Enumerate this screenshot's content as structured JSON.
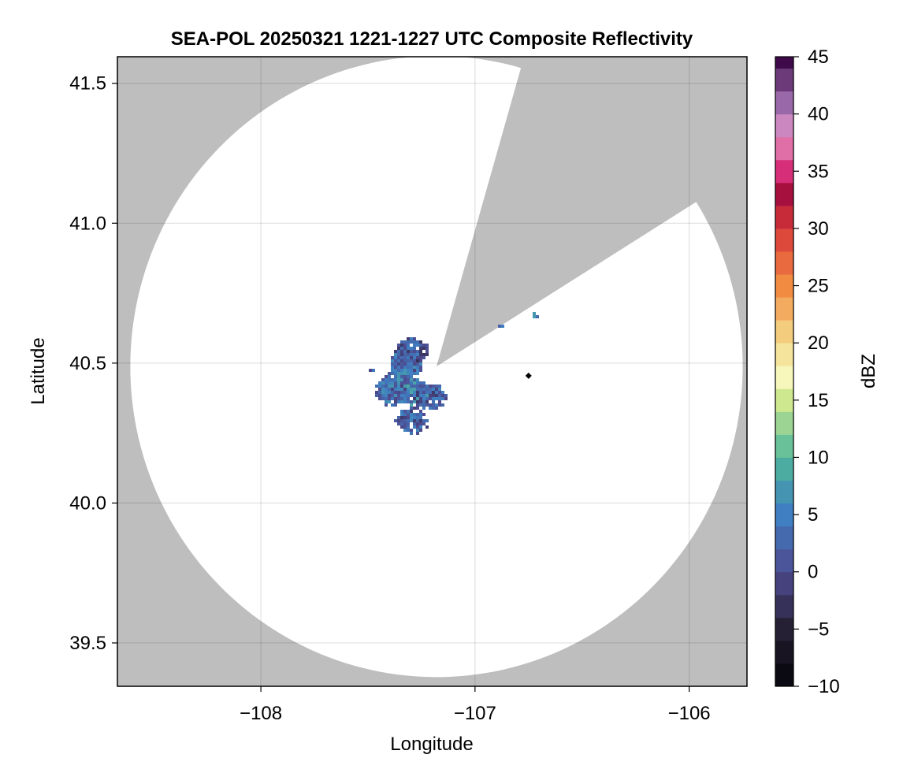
{
  "chart_data": {
    "type": "heatmap",
    "title": "SEA-POL 20250321 1221-1227 UTC Composite Reflectivity",
    "xlabel": "Longitude",
    "ylabel": "Latitude",
    "xlim": [
      -108.67,
      -105.73
    ],
    "ylim": [
      39.345,
      41.595
    ],
    "xticks": [
      -108,
      -107,
      -106
    ],
    "xtick_labels": [
      "−108",
      "−107",
      "−106"
    ],
    "yticks": [
      39.5,
      40.0,
      40.5,
      41.0,
      41.5
    ],
    "ytick_labels": [
      "39.5",
      "40.0",
      "40.5",
      "41.0",
      "41.5"
    ],
    "grid": true,
    "background_color": "#bebebe",
    "coverage_fill_color": "#ffffff",
    "radar": {
      "center_lon": -107.18,
      "center_lat": 40.488,
      "range_lon_deg": 1.43,
      "range_lat_deg": 1.11,
      "blocked_sector_azimuth_deg": [
        16,
        58
      ]
    },
    "radar_site_marker": {
      "lon": -106.75,
      "lat": 40.455,
      "color": "#000000"
    },
    "echoes": {
      "description_dbz_range": [
        -2,
        8
      ],
      "blobs": [
        {
          "lon": -107.33,
          "lat": 40.5,
          "dbz": 3
        },
        {
          "lon": -107.36,
          "lat": 40.44,
          "dbz": 4
        },
        {
          "lon": -107.3,
          "lat": 40.4,
          "dbz": 5
        },
        {
          "lon": -107.22,
          "lat": 40.385,
          "dbz": 2
        },
        {
          "lon": -107.4,
          "lat": 40.4,
          "dbz": 3
        },
        {
          "lon": -107.3,
          "lat": 40.55,
          "dbz": 1
        },
        {
          "lon": -107.3,
          "lat": 40.3,
          "dbz": 2
        },
        {
          "lon": -107.49,
          "lat": 40.48,
          "dbz": 1
        },
        {
          "lon": -106.88,
          "lat": 40.63,
          "dbz": 6
        },
        {
          "lon": -106.72,
          "lat": 40.68,
          "dbz": 6
        }
      ]
    },
    "colorbar": {
      "label": "dBZ",
      "min": -10,
      "max": 45,
      "step": 2,
      "ticks": [
        -10,
        -5,
        0,
        5,
        10,
        15,
        20,
        25,
        30,
        35,
        40,
        45
      ],
      "tick_labels": [
        "−10",
        "−5",
        "0",
        "5",
        "10",
        "15",
        "20",
        "25",
        "30",
        "35",
        "40",
        "45"
      ],
      "colormap": [
        [
          -10,
          "#050308"
        ],
        [
          -5,
          "#252033"
        ],
        [
          0,
          "#4e4a8f"
        ],
        [
          5,
          "#3f7fc2"
        ],
        [
          10,
          "#4fb79a"
        ],
        [
          15,
          "#cde88f"
        ],
        [
          17,
          "#f7f7bc"
        ],
        [
          20,
          "#f4dc8c"
        ],
        [
          25,
          "#f28b42"
        ],
        [
          30,
          "#d83838"
        ],
        [
          33,
          "#a5103f"
        ],
        [
          35,
          "#d62e79"
        ],
        [
          38,
          "#e58fc0"
        ],
        [
          40,
          "#b07fc0"
        ],
        [
          45,
          "#3e0a4a"
        ]
      ]
    }
  }
}
